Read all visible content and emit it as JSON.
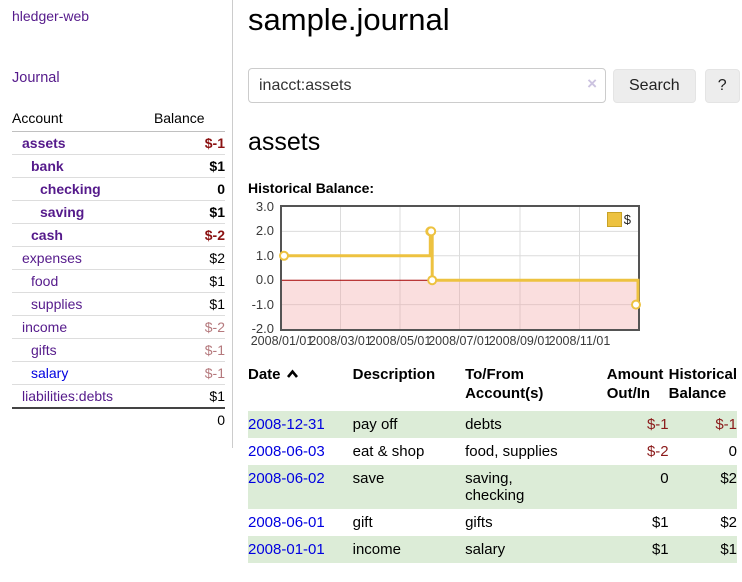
{
  "sidebar": {
    "brand": "hledger-web",
    "nav": {
      "journal": "Journal"
    },
    "accounts_table": {
      "headers": {
        "account": "Account",
        "balance": "Balance"
      },
      "rows": [
        {
          "name": "assets",
          "indent": 1,
          "bold": true,
          "balance": "$-1",
          "negative": "strong"
        },
        {
          "name": "bank",
          "indent": 2,
          "bold": true,
          "balance": "$1",
          "negative": null
        },
        {
          "name": "checking",
          "indent": 3,
          "bold": true,
          "balance": "0",
          "negative": null
        },
        {
          "name": "saving",
          "indent": 3,
          "bold": true,
          "balance": "$1",
          "negative": null
        },
        {
          "name": "cash",
          "indent": 2,
          "bold": true,
          "balance": "$-2",
          "negative": "strong"
        },
        {
          "name": "expenses",
          "indent": 1,
          "bold": false,
          "balance": "$2",
          "negative": null
        },
        {
          "name": "food",
          "indent": 2,
          "bold": false,
          "balance": "$1",
          "negative": null
        },
        {
          "name": "supplies",
          "indent": 2,
          "bold": false,
          "balance": "$1",
          "negative": null
        },
        {
          "name": "income",
          "indent": 1,
          "bold": false,
          "balance": "$-2",
          "negative": "muted"
        },
        {
          "name": "gifts",
          "indent": 2,
          "bold": false,
          "balance": "$-1",
          "negative": "muted"
        },
        {
          "name": "salary",
          "indent": 2,
          "bold": false,
          "balance": "$-1",
          "negative": "muted",
          "unvisited": true
        },
        {
          "name": "liabilities:debts",
          "indent": 1,
          "bold": false,
          "balance": "$1",
          "negative": null
        }
      ],
      "total": "0"
    }
  },
  "header": {
    "title": "sample.journal"
  },
  "search": {
    "value": "inacct:assets",
    "clear_label": "×",
    "button": "Search",
    "help_button": "?"
  },
  "account_page": {
    "heading": "assets",
    "chart_label": "Historical Balance:"
  },
  "chart_data": {
    "type": "line",
    "step": true,
    "title": "Historical Balance:",
    "series": [
      {
        "name": "$",
        "color": "#EDC240",
        "points": [
          [
            "2008/01/01",
            1
          ],
          [
            "2008/06/01",
            2
          ],
          [
            "2008/06/02",
            2
          ],
          [
            "2008/06/03",
            0
          ],
          [
            "2008/12/31",
            -1
          ]
        ]
      }
    ],
    "x_range": [
      "2008/01/01",
      "2008/12/31"
    ],
    "x_ticks": [
      "2008/01/01",
      "2008/03/01",
      "2008/05/01",
      "2008/07/01",
      "2008/09/01",
      "2008/11/01"
    ],
    "y_ticks": [
      3.0,
      2.0,
      1.0,
      0.0,
      -1.0,
      -2.0
    ],
    "ylim": [
      -2,
      3
    ],
    "grid_color": "#dcdcdc",
    "negative_region_color": "#f0a0a0",
    "zero_line_color": "#a40000",
    "legend_position": "top-right"
  },
  "register_table": {
    "headers": {
      "date": "Date",
      "description": "Description",
      "accounts": "To/From Account(s)",
      "amount": "Amount Out/In",
      "balance": "Historical Balance"
    },
    "rows": [
      {
        "date": "2008-12-31",
        "description": "pay off",
        "accounts": "debts",
        "amount": "$-1",
        "balance": "$-1"
      },
      {
        "date": "2008-06-03",
        "description": "eat & shop",
        "accounts": "food, supplies",
        "amount": "$-2",
        "balance": "0"
      },
      {
        "date": "2008-06-02",
        "description": "save",
        "accounts": "saving, checking",
        "amount": "0",
        "balance": "$2"
      },
      {
        "date": "2008-06-01",
        "description": "gift",
        "accounts": "gifts",
        "amount": "$1",
        "balance": "$2"
      },
      {
        "date": "2008-01-01",
        "description": "income",
        "accounts": "salary",
        "amount": "$1",
        "balance": "$1"
      }
    ],
    "stripe_color": "#dcecd7"
  },
  "colors": {
    "link_purple": "#551a8b",
    "link_blue": "#0000e0",
    "negative_strong": "#8b1212",
    "negative_muted": "#b5797d",
    "negative_register": "#8b1a1a",
    "series_gold": "#EDC240",
    "stripe_green": "#dcecd7",
    "zero_line": "#a40000"
  }
}
